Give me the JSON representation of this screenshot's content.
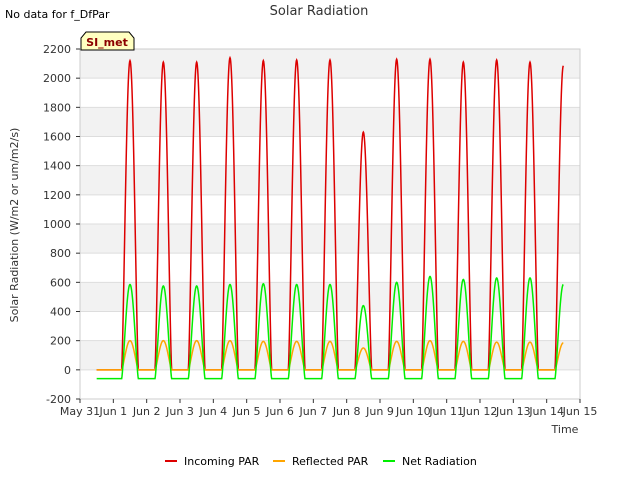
{
  "no_data_text": "No data for f_DfPar",
  "site_label": "SI_met",
  "chart_data": {
    "type": "line",
    "title": "Solar Radiation",
    "xlabel": "Time",
    "ylabel": "Solar Radiation (W/m2 or um/m2/s)",
    "xlim": [
      0,
      15
    ],
    "ylim": [
      -200,
      2200
    ],
    "x_ticks": [
      0,
      1,
      2,
      3,
      4,
      5,
      6,
      7,
      8,
      9,
      10,
      11,
      12,
      13,
      14,
      15
    ],
    "x_tick_labels": [
      "May 31",
      "Jun 1",
      "Jun 2",
      "Jun 3",
      "Jun 4",
      "Jun 5",
      "Jun 6",
      "Jun 7",
      "Jun 8",
      "Jun 9",
      "Jun 10",
      "Jun 11",
      "Jun 12",
      "Jun 13",
      "Jun 14",
      "Jun 15"
    ],
    "y_ticks": [
      -200,
      0,
      200,
      400,
      600,
      800,
      1000,
      1200,
      1400,
      1600,
      1800,
      2000,
      2200
    ],
    "y_tick_labels": [
      "-200",
      "0",
      "200",
      "400",
      "600",
      "800",
      "1000",
      "1200",
      "1400",
      "1600",
      "1800",
      "2000",
      "2200"
    ],
    "day_start": 0.5,
    "day_end": 14.5,
    "series": [
      {
        "name": "Incoming PAR",
        "color": "#dd0000",
        "night_value": 0,
        "daily_peaks": [
          2120,
          2110,
          2110,
          2140,
          2120,
          2125,
          2125,
          1630,
          2130,
          2130,
          2110,
          2125,
          2110,
          2085
        ]
      },
      {
        "name": "Reflected PAR",
        "color": "#ffa500",
        "night_value": 0,
        "daily_peaks": [
          200,
          200,
          200,
          200,
          195,
          195,
          195,
          150,
          195,
          200,
          195,
          190,
          190,
          185
        ]
      },
      {
        "name": "Net Radiation",
        "color": "#00ee00",
        "night_value": -60,
        "daily_peaks": [
          585,
          575,
          575,
          585,
          590,
          585,
          585,
          440,
          600,
          640,
          620,
          630,
          630,
          585
        ]
      }
    ],
    "legend_position": "bottom-center",
    "grid": true
  }
}
